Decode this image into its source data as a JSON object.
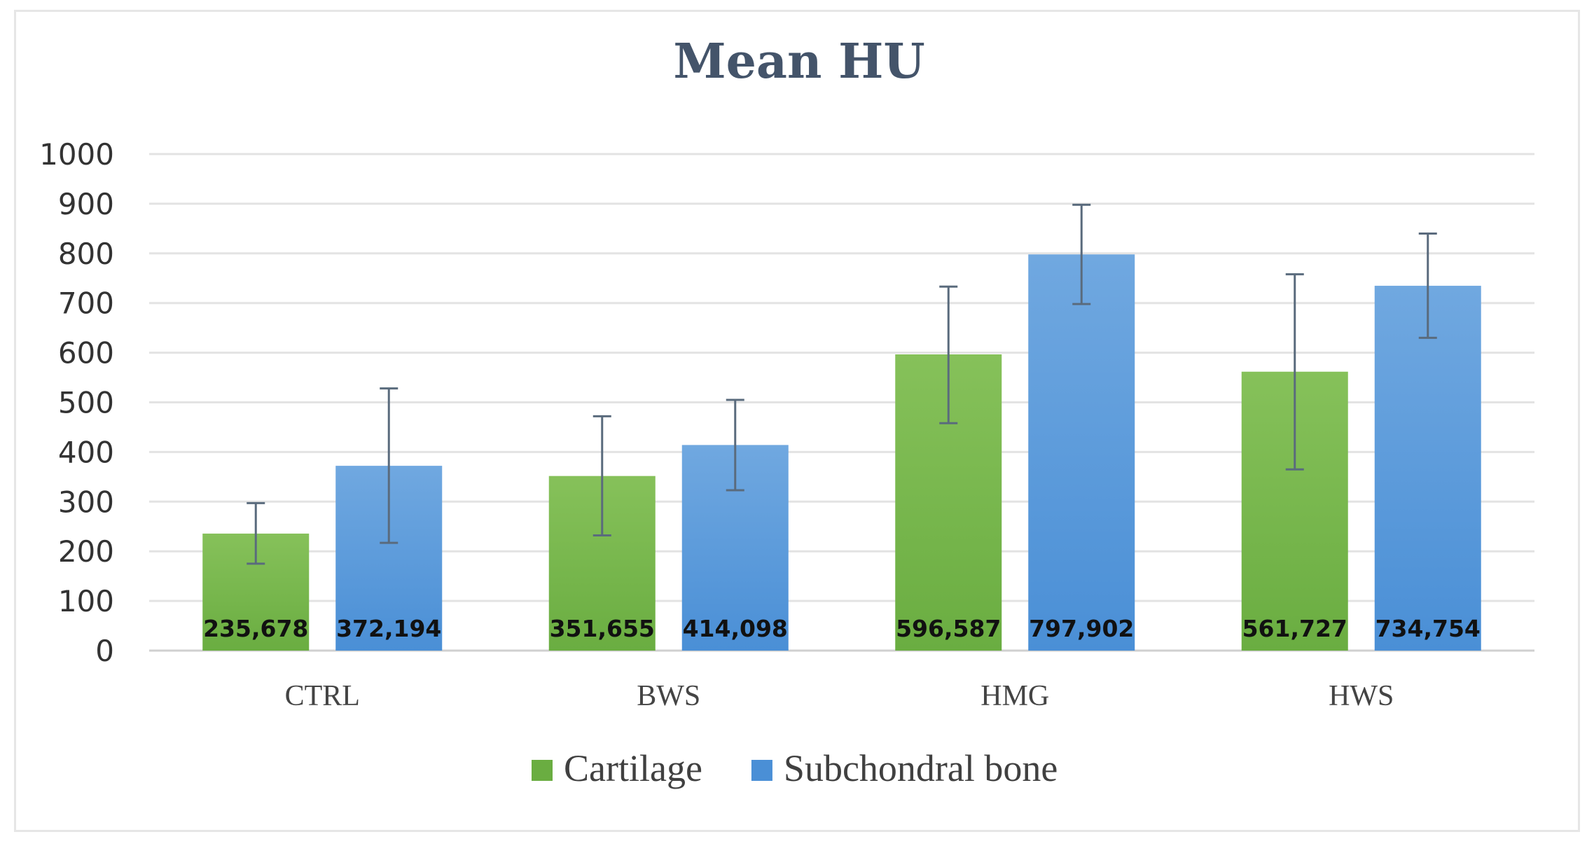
{
  "chart_data": {
    "type": "bar",
    "title": "Mean HU",
    "xlabel": "",
    "ylabel": "",
    "categories": [
      "CTRL",
      "BWS",
      "HMG",
      "HWS"
    ],
    "ylim": [
      0,
      1000
    ],
    "yticks": [
      0,
      100,
      200,
      300,
      400,
      500,
      600,
      700,
      800,
      900,
      1000
    ],
    "grid": true,
    "legend_position": "bottom",
    "series": [
      {
        "name": "Cartilage",
        "color": "#6aad41",
        "color_light": "#86c15a",
        "values": [
          235.678,
          351.655,
          596.587,
          561.727
        ],
        "labels": [
          "235,678",
          "351,655",
          "596,587",
          "561,727"
        ],
        "error_low": [
          175,
          232,
          458,
          365
        ],
        "error_high": [
          297,
          472,
          733,
          758
        ]
      },
      {
        "name": "Subchondral bone",
        "color": "#4a8fd6",
        "color_light": "#70a8e0",
        "values": [
          372.194,
          414.098,
          797.902,
          734.754
        ],
        "labels": [
          "372,194",
          "414,098",
          "797,902",
          "734,754"
        ],
        "error_low": [
          217,
          323,
          698,
          630
        ],
        "error_high": [
          528,
          505,
          898,
          840
        ]
      }
    ]
  }
}
